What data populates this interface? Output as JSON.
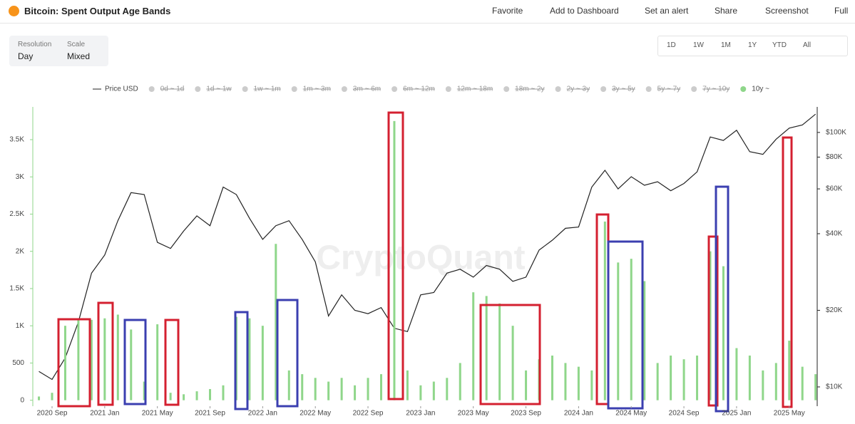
{
  "header": {
    "title": "Bitcoin: Spent Output Age Bands",
    "buttons": [
      "Favorite",
      "Add to Dashboard",
      "Set an alert",
      "Share",
      "Screenshot",
      "Full"
    ]
  },
  "controls": {
    "resolution_label": "Resolution",
    "resolution": "Day",
    "scale_label": "Scale",
    "scale": "Mixed",
    "ranges": [
      "1D",
      "1W",
      "1M",
      "1Y",
      "YTD",
      "All"
    ]
  },
  "chart_data": {
    "type": "bar-line",
    "watermark": "CryptoQuant",
    "x": [
      "2020-08",
      "2020-09",
      "2020-10",
      "2020-11",
      "2020-12",
      "2021-01",
      "2021-02",
      "2021-03",
      "2021-04",
      "2021-05",
      "2021-06",
      "2021-07",
      "2021-08",
      "2021-09",
      "2021-10",
      "2021-11",
      "2021-12",
      "2022-01",
      "2022-02",
      "2022-03",
      "2022-04",
      "2022-05",
      "2022-06",
      "2022-07",
      "2022-08",
      "2022-09",
      "2022-10",
      "2022-11",
      "2022-12",
      "2023-01",
      "2023-02",
      "2023-03",
      "2023-04",
      "2023-05",
      "2023-06",
      "2023-07",
      "2023-08",
      "2023-09",
      "2023-10",
      "2023-11",
      "2023-12",
      "2024-01",
      "2024-02",
      "2024-03",
      "2024-04",
      "2024-05",
      "2024-06",
      "2024-07",
      "2024-08",
      "2024-09",
      "2024-10",
      "2024-11",
      "2024-12",
      "2025-01",
      "2025-02",
      "2025-03",
      "2025-04",
      "2025-05",
      "2025-06",
      "2025-07"
    ],
    "series": [
      {
        "name": "Price USD",
        "color": "#222222",
        "axis": "y2",
        "values": [
          11500,
          10700,
          13000,
          18000,
          28000,
          33000,
          45000,
          58000,
          57000,
          37000,
          35000,
          41000,
          47000,
          43000,
          61000,
          57000,
          46000,
          38000,
          43000,
          45000,
          38000,
          31000,
          19000,
          23000,
          20000,
          19400,
          20500,
          17000,
          16500,
          23000,
          23500,
          28000,
          29000,
          27000,
          30000,
          29000,
          26000,
          27000,
          34500,
          37700,
          42000,
          42500,
          61000,
          71000,
          60000,
          67000,
          62000,
          64000,
          59000,
          63000,
          70000,
          96000,
          93000,
          102000,
          84000,
          82000,
          94000,
          104000,
          107000,
          118000
        ]
      },
      {
        "name": "10y ~",
        "color": "#8fd68a",
        "values": [
          50,
          100,
          1000,
          1100,
          1080,
          1100,
          1150,
          950,
          250,
          1020,
          100,
          80,
          120,
          150,
          200,
          1120,
          1100,
          1000,
          2100,
          400,
          350,
          300,
          250,
          300,
          200,
          300,
          350,
          3750,
          400,
          200,
          250,
          300,
          500,
          1450,
          1400,
          1300,
          1000,
          400,
          550,
          600,
          500,
          450,
          400,
          2400,
          1850,
          1900,
          1600,
          500,
          600,
          550,
          600,
          2000,
          1800,
          700,
          600,
          400,
          500,
          800,
          450,
          350
        ]
      }
    ],
    "hidden_series": [
      "0d ~ 1d",
      "1d ~ 1w",
      "1w ~ 1m",
      "1m ~ 3m",
      "3m ~ 6m",
      "6m ~ 12m",
      "12m ~ 18m",
      "18m ~ 2y",
      "2y ~ 3y",
      "3y ~ 5y",
      "5y ~ 7y",
      "7y ~ 10y"
    ],
    "ylim": [
      -80,
      3940
    ],
    "yticks": [
      0,
      500,
      {
        "value": 1000,
        "label": "1K"
      },
      {
        "value": 1500,
        "label": "1.5K"
      },
      {
        "value": 2000,
        "label": "2K"
      },
      {
        "value": 2500,
        "label": "2.5K"
      },
      {
        "value": 3000,
        "label": "3K"
      },
      {
        "value": 3500,
        "label": "3.5K"
      }
    ],
    "y2lim": [
      8400,
      126000
    ],
    "y2log": true,
    "y2ticks": [
      {
        "value": 10000,
        "label": "$10K"
      },
      {
        "value": 20000,
        "label": "$20K"
      },
      {
        "value": 40000,
        "label": "$40K"
      },
      {
        "value": 60000,
        "label": "$60K"
      },
      {
        "value": 80000,
        "label": "$80K"
      },
      {
        "value": 100000,
        "label": "$100K"
      }
    ],
    "xticks": [
      {
        "value": "2020-09",
        "label": "2020 Sep"
      },
      {
        "value": "2021-01",
        "label": "2021 Jan"
      },
      {
        "value": "2021-05",
        "label": "2021 May"
      },
      {
        "value": "2021-09",
        "label": "2021 Sep"
      },
      {
        "value": "2022-01",
        "label": "2022 Jan"
      },
      {
        "value": "2022-05",
        "label": "2022 May"
      },
      {
        "value": "2022-09",
        "label": "2022 Sep"
      },
      {
        "value": "2023-01",
        "label": "2023 Jan"
      },
      {
        "value": "2023-05",
        "label": "2023 May"
      },
      {
        "value": "2023-09",
        "label": "2023 Sep"
      },
      {
        "value": "2024-01",
        "label": "2024 Jan"
      },
      {
        "value": "2024-05",
        "label": "2024 May"
      },
      {
        "value": "2024-09",
        "label": "2024 Sep"
      },
      {
        "value": "2025-01",
        "label": "2025 Jan"
      },
      {
        "value": "2025-05",
        "label": "2025 May"
      }
    ]
  }
}
